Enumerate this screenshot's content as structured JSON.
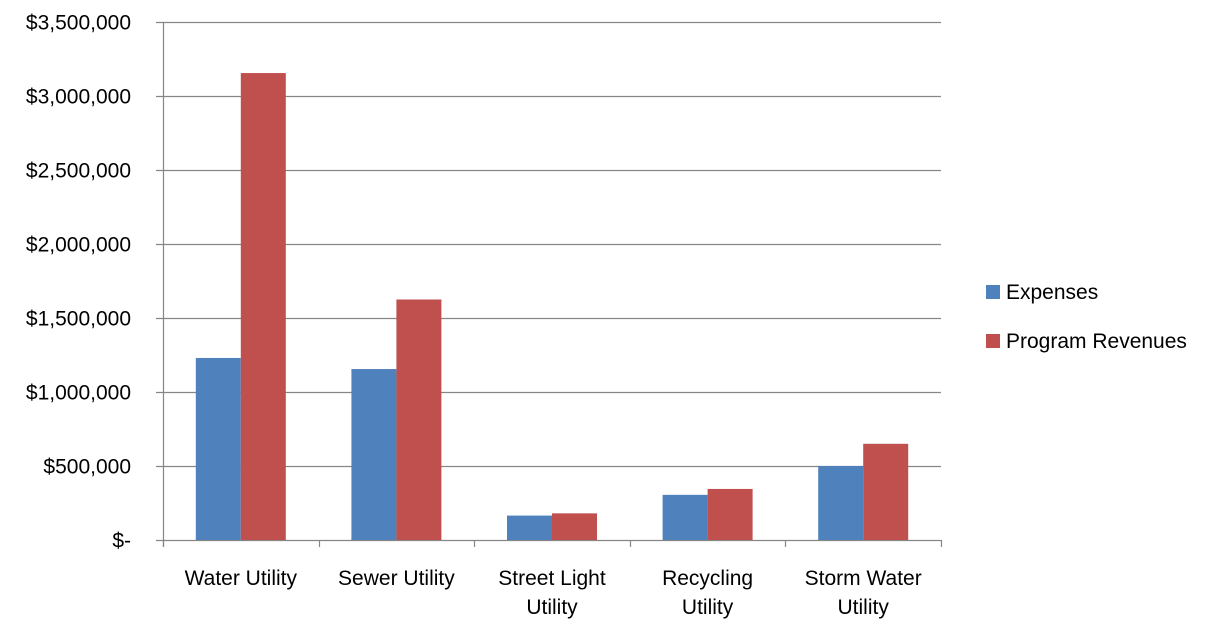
{
  "chart_data": {
    "type": "bar",
    "categories": [
      "Water Utility",
      "Sewer Utility",
      "Street Light Utility",
      "Recycling Utility",
      "Storm Water Utility"
    ],
    "category_lines": [
      [
        "Water Utility"
      ],
      [
        "Sewer Utility"
      ],
      [
        "Street Light",
        "Utility"
      ],
      [
        "Recycling",
        "Utility"
      ],
      [
        "Storm Water",
        "Utility"
      ]
    ],
    "series": [
      {
        "name": "Expenses",
        "color": "#4F81BD",
        "values": [
          1230000,
          1155000,
          165000,
          305000,
          500000
        ]
      },
      {
        "name": "Program Revenues",
        "color": "#C0504D",
        "values": [
          3155000,
          1625000,
          180000,
          345000,
          650000
        ]
      }
    ],
    "ylim": [
      0,
      3500000
    ],
    "yticks": [
      0,
      500000,
      1000000,
      1500000,
      2000000,
      2500000,
      3000000,
      3500000
    ],
    "ytick_labels": [
      "$-",
      "$500,000",
      "$1,000,000",
      "$1,500,000",
      "$2,000,000",
      "$2,500,000",
      "$3,000,000",
      "$3,500,000"
    ],
    "grid": true,
    "legend_position": "right",
    "title": "",
    "xlabel": "",
    "ylabel": ""
  }
}
